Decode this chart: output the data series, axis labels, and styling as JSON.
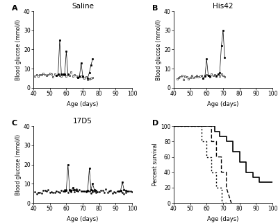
{
  "panel_A_title": "Saline",
  "panel_B_title": "His42",
  "panel_C_title": "17D5",
  "xlabel": "Age (days)",
  "ylabel": "Blood glucose (mmol/l)",
  "xlim": [
    40,
    100
  ],
  "ylim_glucose": [
    0,
    40
  ],
  "ylim_survival": [
    0,
    100
  ],
  "xticks_glucose": [
    40,
    50,
    60,
    70,
    80,
    90,
    100
  ],
  "yticks_glucose": [
    0,
    10,
    20,
    30,
    40
  ],
  "xticks_survival": [
    40,
    50,
    60,
    70,
    80,
    90,
    100
  ],
  "yticks_survival": [
    0,
    20,
    40,
    60,
    80,
    100
  ],
  "bg_color": "#ffffff",
  "saline_data": {
    "baseline_x": [
      41,
      42,
      43,
      44,
      45,
      46,
      47,
      48,
      49,
      50,
      51,
      52,
      53,
      54,
      55,
      56,
      57,
      58,
      59,
      60,
      61,
      62,
      63,
      64,
      65,
      66,
      67,
      68,
      69,
      70,
      71,
      72,
      73,
      74,
      75,
      76
    ],
    "baseline_y": [
      6.2,
      6.8,
      6.1,
      7.0,
      6.3,
      7.1,
      6.9,
      6.2,
      6.4,
      7.2,
      7.0,
      6.1,
      7.0,
      6.3,
      6.5,
      6.2,
      6.8,
      7.1,
      6.3,
      6.1,
      7.0,
      6.2,
      7.1,
      6.3,
      7.0,
      6.1,
      5.2,
      5.4,
      6.1,
      5.3,
      5.2,
      6.0,
      5.1,
      5.3,
      5.2,
      5.0
    ],
    "spikes": [
      {
        "x": [
          54,
          55,
          56,
          57
        ],
        "y": [
          6.5,
          7.0,
          25.0,
          7.0
        ]
      },
      {
        "x": [
          58,
          59,
          60,
          61
        ],
        "y": [
          7.1,
          7.0,
          19.0,
          7.0
        ]
      },
      {
        "x": [
          67,
          68,
          69,
          70
        ],
        "y": [
          5.2,
          6.0,
          13.0,
          6.0
        ]
      },
      {
        "x": [
          73,
          74,
          75,
          76
        ],
        "y": [
          5.1,
          8.0,
          12.0,
          15.0
        ]
      }
    ]
  },
  "his42_data": {
    "baseline_x": [
      42,
      43,
      44,
      45,
      46,
      47,
      48,
      49,
      50,
      51,
      52,
      53,
      54,
      55,
      56,
      57,
      58,
      59,
      60,
      61,
      62,
      63,
      64,
      65,
      66,
      67,
      68,
      69,
      70,
      71
    ],
    "baseline_y": [
      5.1,
      5.3,
      6.0,
      6.2,
      5.1,
      6.0,
      6.2,
      5.1,
      6.0,
      6.2,
      5.1,
      6.0,
      6.2,
      5.1,
      6.0,
      6.2,
      5.1,
      6.0,
      6.2,
      6.8,
      6.1,
      7.0,
      6.2,
      7.1,
      6.2,
      7.0,
      6.2,
      7.1,
      6.2,
      6.1
    ],
    "spikes": [
      {
        "x": [
          58,
          59,
          60,
          61,
          62
        ],
        "y": [
          5.1,
          6.0,
          15.0,
          6.5,
          6.0
        ]
      },
      {
        "x": [
          66,
          67,
          68,
          69,
          70,
          71
        ],
        "y": [
          6.2,
          7.0,
          8.0,
          22.0,
          30.0,
          16.0
        ]
      }
    ]
  },
  "c17d5_data": {
    "baseline_x": [
      41,
      42,
      43,
      44,
      45,
      46,
      47,
      48,
      49,
      50,
      51,
      52,
      53,
      54,
      55,
      56,
      57,
      58,
      59,
      60,
      61,
      62,
      63,
      64,
      65,
      66,
      67,
      68,
      69,
      70,
      71,
      72,
      73,
      74,
      75,
      76,
      77,
      78,
      79,
      80,
      81,
      82,
      83,
      84,
      85,
      86,
      87,
      88,
      89,
      90,
      91,
      92,
      93,
      94,
      95,
      96,
      97,
      98,
      99,
      100
    ],
    "baseline_y": [
      5.8,
      6.1,
      5.9,
      6.2,
      5.8,
      6.0,
      6.1,
      5.9,
      6.2,
      5.8,
      6.0,
      6.1,
      5.9,
      6.2,
      5.8,
      6.0,
      6.1,
      5.9,
      6.2,
      5.8,
      6.0,
      6.1,
      5.9,
      6.2,
      5.8,
      6.0,
      6.1,
      5.9,
      6.2,
      5.8,
      6.0,
      6.1,
      5.9,
      6.2,
      5.8,
      6.0,
      6.1,
      5.9,
      6.2,
      5.8,
      6.0,
      6.1,
      5.9,
      6.2,
      5.8,
      6.0,
      6.1,
      5.9,
      6.2,
      5.8,
      6.0,
      6.1,
      5.9,
      6.2,
      5.8,
      6.0,
      6.1,
      5.9,
      6.2,
      5.8
    ],
    "spikes": [
      {
        "x": [
          59,
          60,
          61,
          62,
          63
        ],
        "y": [
          6.2,
          6.5,
          20.0,
          7.0,
          6.5
        ]
      },
      {
        "x": [
          63,
          64,
          65,
          66
        ],
        "y": [
          6.5,
          8.0,
          7.0,
          6.5
        ]
      },
      {
        "x": [
          72,
          73,
          74,
          75,
          76
        ],
        "y": [
          6.0,
          6.5,
          18.0,
          7.0,
          6.5
        ]
      },
      {
        "x": [
          75,
          76,
          77,
          78
        ],
        "y": [
          7.0,
          10.0,
          7.0,
          6.5
        ]
      },
      {
        "x": [
          92,
          93,
          94,
          95,
          96
        ],
        "y": [
          6.0,
          6.5,
          11.0,
          7.0,
          6.5
        ]
      }
    ]
  },
  "survival_dotted": {
    "x": [
      40,
      57,
      57,
      60,
      60,
      63,
      63,
      66,
      66,
      69,
      69,
      72
    ],
    "y": [
      100,
      100,
      80,
      80,
      60,
      60,
      40,
      40,
      20,
      20,
      0,
      0
    ]
  },
  "survival_dashed": {
    "x": [
      40,
      63,
      63,
      66,
      66,
      69,
      69,
      72,
      72,
      75
    ],
    "y": [
      100,
      100,
      80,
      80,
      60,
      60,
      40,
      40,
      20,
      0
    ]
  },
  "survival_solid": {
    "x": [
      40,
      65,
      65,
      68,
      68,
      72,
      72,
      76,
      76,
      80,
      80,
      84,
      84,
      88,
      88,
      92,
      92,
      100
    ],
    "y": [
      100,
      100,
      93,
      93,
      87,
      87,
      80,
      80,
      67,
      67,
      53,
      53,
      40,
      40,
      33,
      33,
      27,
      27
    ]
  }
}
